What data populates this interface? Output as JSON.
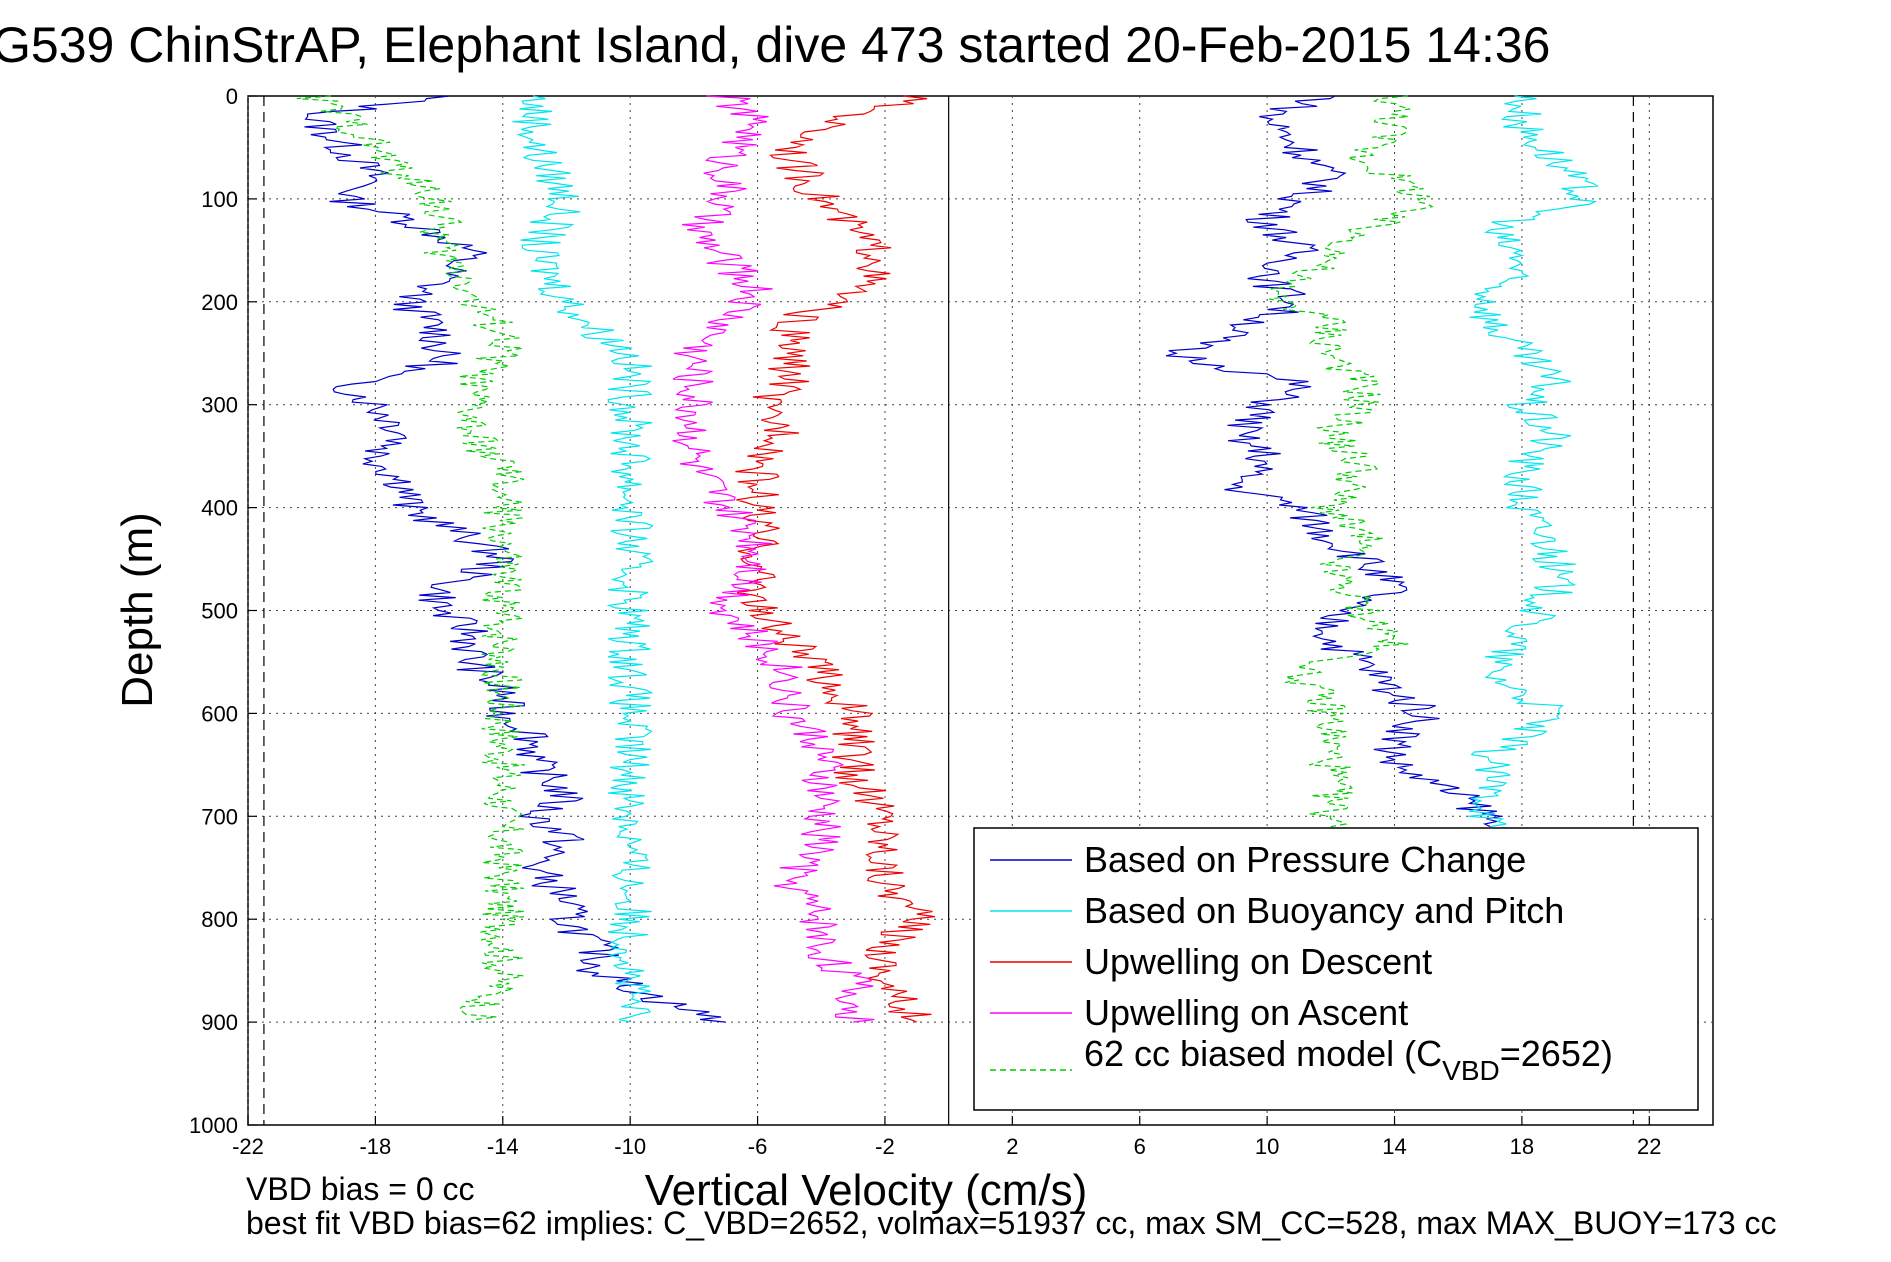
{
  "chart_data": {
    "type": "line",
    "title": "G539 ChinStrAP, Elephant Island, dive 473 started 20-Feb-2015 14:36",
    "xlabel": "Vertical Velocity (cm/s)",
    "ylabel": "Depth (m)",
    "xlim": [
      -22,
      24
    ],
    "ylim": [
      1000,
      0
    ],
    "y_reversed": true,
    "grid": true,
    "x_ticks": [
      "-22",
      "-18",
      "-14",
      "-10",
      "-6",
      "-2",
      "2",
      "6",
      "10",
      "14",
      "18",
      "22"
    ],
    "y_ticks": [
      "0",
      "100",
      "200",
      "300",
      "400",
      "500",
      "600",
      "700",
      "800",
      "900",
      "1000"
    ],
    "reference_lines": [
      {
        "x": 0,
        "style": "solid"
      },
      {
        "x": -21.5,
        "style": "dashed"
      },
      {
        "x": 21.5,
        "style": "dashed"
      }
    ],
    "legend": {
      "placement": "bottom-right",
      "entries": [
        "Based on Pressure Change",
        "Based on Buoyancy and Pitch",
        "Upwelling on Descent",
        "Upwelling on Ascent",
        "62 cc biased model (C",
        "VBD",
        "=2652)"
      ]
    },
    "colors": {
      "pressure_change": "#0000cc",
      "buoyancy_pitch": "#00e5ee",
      "upwelling_descent": "#ee0000",
      "upwelling_ascent": "#ff00ff",
      "biased_model": "#00cc00"
    },
    "series": [
      {
        "name": "Based on Pressure Change",
        "part": "descent",
        "depth": [
          0,
          20,
          50,
          80,
          100,
          120,
          150,
          180,
          200,
          230,
          260,
          280,
          300,
          330,
          350,
          380,
          400,
          430,
          450,
          480,
          500,
          520,
          550,
          580,
          600,
          620,
          650,
          680,
          700,
          720,
          750,
          780,
          800,
          830,
          850,
          880,
          900
        ],
        "values": [
          -16,
          -20,
          -19,
          -18,
          -19,
          -17,
          -15,
          -16,
          -17,
          -16,
          -16,
          -19,
          -18,
          -17,
          -18,
          -17,
          -17,
          -15,
          -14,
          -16,
          -16,
          -15,
          -15,
          -14,
          -14,
          -13,
          -13,
          -12,
          -13,
          -12,
          -13,
          -12,
          -12,
          -11,
          -11,
          -9,
          -7
        ]
      },
      {
        "name": "Based on Pressure Change",
        "part": "ascent",
        "depth": [
          0,
          20,
          50,
          80,
          100,
          120,
          150,
          180,
          200,
          230,
          250,
          280,
          300,
          330,
          350,
          380,
          400,
          430,
          450,
          480,
          500,
          530,
          550,
          580,
          600,
          630,
          650,
          680,
          700,
          710
        ],
        "values": [
          12,
          10,
          11,
          12,
          11,
          10,
          11,
          10,
          11,
          9,
          7,
          11,
          10,
          9,
          10,
          9,
          11,
          12,
          13,
          14,
          12,
          12,
          13,
          14,
          15,
          14,
          14,
          16,
          17,
          17
        ]
      },
      {
        "name": "Based on Buoyancy and Pitch",
        "part": "descent",
        "depth": [
          0,
          50,
          100,
          150,
          200,
          230,
          250,
          280,
          300,
          350,
          400,
          450,
          500,
          550,
          600,
          650,
          700,
          750,
          800,
          850,
          900
        ],
        "values": [
          -13,
          -13,
          -12,
          -13,
          -12,
          -11,
          -10,
          -10,
          -10,
          -10,
          -10,
          -10,
          -10,
          -10,
          -10,
          -10,
          -10,
          -10,
          -10,
          -10,
          -10
        ]
      },
      {
        "name": "Based on Buoyancy and Pitch",
        "part": "ascent",
        "depth": [
          0,
          30,
          60,
          100,
          130,
          160,
          190,
          220,
          250,
          280,
          300,
          330,
          360,
          400,
          440,
          480,
          520,
          560,
          600,
          640,
          680,
          710
        ],
        "values": [
          18,
          18,
          19,
          20,
          17,
          18,
          17,
          17,
          18,
          19,
          18,
          19,
          18,
          18,
          19,
          19,
          18,
          17,
          19,
          17,
          17,
          17
        ]
      },
      {
        "name": "Upwelling on Descent",
        "depth": [
          0,
          30,
          60,
          100,
          130,
          160,
          190,
          220,
          250,
          280,
          300,
          330,
          360,
          400,
          430,
          460,
          500,
          530,
          560,
          600,
          630,
          660,
          700,
          730,
          760,
          800,
          830,
          860,
          900
        ],
        "values": [
          -1,
          -4,
          -5,
          -4,
          -3,
          -2,
          -3,
          -5,
          -5,
          -5,
          -6,
          -5,
          -6,
          -6,
          -6,
          -6,
          -6,
          -5,
          -4,
          -3,
          -3,
          -3,
          -2,
          -2,
          -2,
          -1,
          -2,
          -2,
          -1
        ]
      },
      {
        "name": "Upwelling on Ascent",
        "depth": [
          0,
          30,
          60,
          100,
          130,
          160,
          190,
          220,
          250,
          280,
          300,
          330,
          360,
          400,
          430,
          460,
          500,
          530,
          560,
          600,
          630,
          660,
          700,
          730,
          760,
          800,
          830,
          860,
          900
        ],
        "values": [
          -7,
          -6,
          -7,
          -7,
          -8,
          -7,
          -6,
          -7,
          -8,
          -8,
          -8,
          -8,
          -8,
          -7,
          -6,
          -6,
          -7,
          -6,
          -5,
          -5,
          -4,
          -4,
          -4,
          -4,
          -5,
          -4,
          -4,
          -3,
          -3
        ]
      },
      {
        "name": "62 cc biased model (CVBD=2652)",
        "part": "descent",
        "depth": [
          0,
          20,
          50,
          80,
          100,
          130,
          150,
          180,
          200,
          230,
          250,
          280,
          300,
          330,
          360,
          400,
          430,
          460,
          500,
          530,
          560,
          600,
          630,
          660,
          700,
          730,
          760,
          800,
          830,
          860,
          900
        ],
        "values": [
          -20,
          -19,
          -18,
          -17,
          -16,
          -16,
          -16,
          -15,
          -15,
          -14,
          -14,
          -15,
          -15,
          -15,
          -14,
          -14,
          -14,
          -14,
          -14,
          -14,
          -14,
          -14,
          -14,
          -14,
          -14,
          -14,
          -14,
          -14,
          -14,
          -14,
          -15
        ]
      },
      {
        "name": "62 cc biased model (CVBD=2652)",
        "part": "ascent",
        "depth": [
          0,
          30,
          60,
          100,
          130,
          160,
          190,
          220,
          250,
          280,
          300,
          330,
          360,
          400,
          430,
          460,
          500,
          530,
          560,
          600,
          630,
          660,
          700,
          710
        ],
        "values": [
          14,
          14,
          13,
          15,
          13,
          12,
          10,
          12,
          12,
          13,
          13,
          12,
          13,
          12,
          13,
          12,
          13,
          14,
          11,
          12,
          12,
          12,
          12,
          12
        ]
      }
    ],
    "annotations": [
      "VBD bias = 0 cc",
      "best fit VBD bias=62 implies: C_VBD=2652, volmax=51937 cc, max SM_CC=528, max MAX_BUOY=173 cc"
    ]
  }
}
